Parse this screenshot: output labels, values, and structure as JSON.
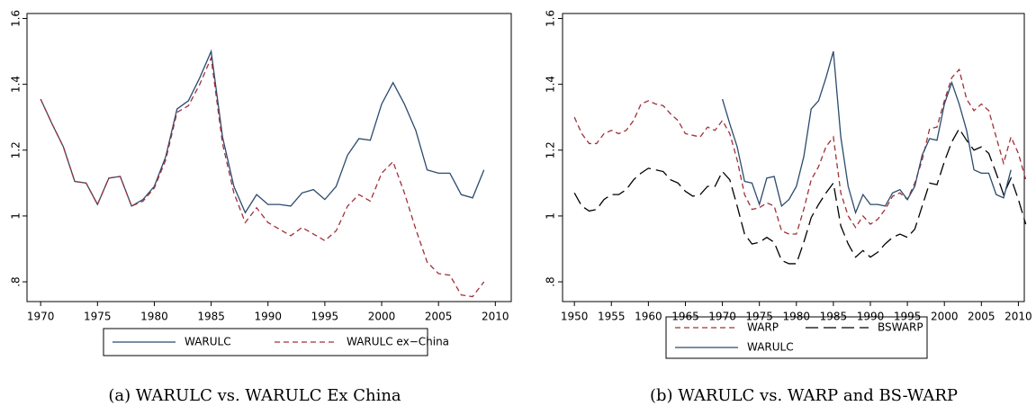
{
  "chart_data": [
    {
      "type": "line",
      "caption": "(a) WARULC vs. WARULC Ex China",
      "x": [
        1970,
        1971,
        1972,
        1973,
        1974,
        1975,
        1976,
        1977,
        1978,
        1979,
        1980,
        1981,
        1982,
        1983,
        1984,
        1985,
        1986,
        1987,
        1988,
        1989,
        1990,
        1991,
        1992,
        1993,
        1994,
        1995,
        1996,
        1997,
        1998,
        1999,
        2000,
        2001,
        2002,
        2003,
        2004,
        2005,
        2006,
        2007,
        2008,
        2009
      ],
      "series": [
        {
          "name": "WARULC",
          "color": "#2c4a6e",
          "linestyle": "solid",
          "values": [
            1.355,
            1.28,
            1.21,
            1.105,
            1.1,
            1.035,
            1.115,
            1.12,
            1.03,
            1.05,
            1.09,
            1.18,
            1.325,
            1.35,
            1.42,
            1.5,
            1.24,
            1.09,
            1.01,
            1.065,
            1.035,
            1.035,
            1.03,
            1.07,
            1.08,
            1.05,
            1.09,
            1.185,
            1.235,
            1.23,
            1.34,
            1.405,
            1.34,
            1.26,
            1.14,
            1.13,
            1.13,
            1.065,
            1.055,
            1.14
          ]
        },
        {
          "name": "WARULC ex−China",
          "color": "#a0303a",
          "linestyle": "dashed",
          "values": [
            1.355,
            1.28,
            1.21,
            1.105,
            1.1,
            1.035,
            1.115,
            1.12,
            1.03,
            1.045,
            1.085,
            1.17,
            1.315,
            1.335,
            1.4,
            1.48,
            1.22,
            1.07,
            0.98,
            1.025,
            0.98,
            0.96,
            0.94,
            0.965,
            0.945,
            0.925,
            0.955,
            1.03,
            1.065,
            1.045,
            1.13,
            1.165,
            1.07,
            0.96,
            0.86,
            0.825,
            0.82,
            0.76,
            0.755,
            0.8
          ]
        }
      ],
      "xlim": [
        1968.8,
        2011.4
      ],
      "xticks": [
        1970,
        1975,
        1980,
        1985,
        1990,
        1995,
        2000,
        2005,
        2010
      ],
      "ylim": [
        0.74,
        1.615
      ],
      "yticks": [
        {
          "value": 0.8,
          "label": ".8"
        },
        1,
        1.2,
        1.4,
        1.6
      ],
      "legend": "bottom"
    },
    {
      "type": "line",
      "caption": "(b) WARULC vs. WARP and BS-WARP",
      "x": [
        1950,
        1951,
        1952,
        1953,
        1954,
        1955,
        1956,
        1957,
        1958,
        1959,
        1960,
        1961,
        1962,
        1963,
        1964,
        1965,
        1966,
        1967,
        1968,
        1969,
        1970,
        1971,
        1972,
        1973,
        1974,
        1975,
        1976,
        1977,
        1978,
        1979,
        1980,
        1981,
        1982,
        1983,
        1984,
        1985,
        1986,
        1987,
        1988,
        1989,
        1990,
        1991,
        1992,
        1993,
        1994,
        1995,
        1996,
        1997,
        1998,
        1999,
        2000,
        2001,
        2002,
        2003,
        2004,
        2005,
        2006,
        2007,
        2008,
        2009,
        2010,
        2011
      ],
      "series": [
        {
          "name": "WARP",
          "color": "#a0303a",
          "linestyle": "dashed",
          "values": [
            1.3,
            1.25,
            1.22,
            1.22,
            1.25,
            1.26,
            1.25,
            1.26,
            1.29,
            1.34,
            1.35,
            1.34,
            1.335,
            1.31,
            1.29,
            1.25,
            1.245,
            1.24,
            1.27,
            1.26,
            1.29,
            1.25,
            1.17,
            1.065,
            1.02,
            1.025,
            1.04,
            1.03,
            0.955,
            0.945,
            0.945,
            1.02,
            1.11,
            1.15,
            1.21,
            1.24,
            1.07,
            1.0,
            0.965,
            1.0,
            0.975,
            0.99,
            1.02,
            1.06,
            1.07,
            1.05,
            1.1,
            1.17,
            1.265,
            1.27,
            1.35,
            1.42,
            1.445,
            1.355,
            1.32,
            1.34,
            1.32,
            1.24,
            1.16,
            1.24,
            1.19,
            1.11
          ]
        },
        {
          "name": "BSWARP",
          "color": "#000000",
          "linestyle": "longdash",
          "values": [
            1.07,
            1.03,
            1.015,
            1.02,
            1.05,
            1.065,
            1.065,
            1.08,
            1.11,
            1.13,
            1.145,
            1.14,
            1.135,
            1.11,
            1.1,
            1.075,
            1.06,
            1.065,
            1.09,
            1.09,
            1.135,
            1.11,
            1.03,
            0.945,
            0.915,
            0.92,
            0.935,
            0.92,
            0.865,
            0.855,
            0.855,
            0.92,
            0.995,
            1.035,
            1.07,
            1.1,
            0.97,
            0.915,
            0.875,
            0.895,
            0.875,
            0.89,
            0.915,
            0.935,
            0.945,
            0.935,
            0.96,
            1.03,
            1.1,
            1.095,
            1.165,
            1.225,
            1.265,
            1.23,
            1.2,
            1.21,
            1.19,
            1.13,
            1.065,
            1.115,
            1.05,
            0.975
          ]
        },
        {
          "name": "WARULC",
          "color": "#2c4a6e",
          "linestyle": "solid",
          "values": [
            null,
            null,
            null,
            null,
            null,
            null,
            null,
            null,
            null,
            null,
            null,
            null,
            null,
            null,
            null,
            null,
            null,
            null,
            null,
            null,
            1.355,
            1.28,
            1.21,
            1.105,
            1.1,
            1.035,
            1.115,
            1.12,
            1.03,
            1.05,
            1.09,
            1.18,
            1.325,
            1.35,
            1.42,
            1.5,
            1.24,
            1.09,
            1.01,
            1.065,
            1.035,
            1.035,
            1.03,
            1.07,
            1.08,
            1.05,
            1.09,
            1.185,
            1.235,
            1.23,
            1.34,
            1.405,
            1.34,
            1.26,
            1.14,
            1.13,
            1.13,
            1.065,
            1.055,
            1.14,
            null,
            null
          ]
        }
      ],
      "xlim": [
        1948.4,
        2010.8
      ],
      "xticks": [
        1950,
        1955,
        1960,
        1965,
        1970,
        1975,
        1980,
        1985,
        1990,
        1995,
        2000,
        2005,
        2010
      ],
      "ylim": [
        0.74,
        1.615
      ],
      "yticks": [
        {
          "value": 0.8,
          "label": ".8"
        },
        1,
        1.2,
        1.4,
        1.6
      ],
      "legend": "bottom"
    }
  ]
}
